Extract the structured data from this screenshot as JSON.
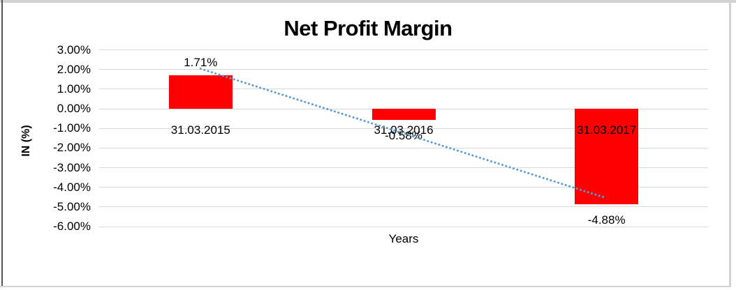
{
  "chart_data": {
    "type": "bar",
    "title": "Net Profit Margin",
    "xlabel": "Years",
    "ylabel": "IN (%)",
    "categories": [
      "31.03.2015",
      "31.03.2016",
      "31.03.2017"
    ],
    "values": [
      1.71,
      -0.58,
      -4.88
    ],
    "data_labels": [
      "1.71%",
      "-0.58%",
      "-4.88%"
    ],
    "ylim": [
      -6,
      3
    ],
    "y_tick_values": [
      3,
      2,
      1,
      0,
      -1,
      -2,
      -3,
      -4,
      -5,
      -6
    ],
    "y_tick_labels": [
      "3.00%",
      "2.00%",
      "1.00%",
      "0.00%",
      "-1.00%",
      "-2.00%",
      "-3.00%",
      "-4.00%",
      "-5.00%",
      "-6.00%"
    ],
    "grid": true,
    "legend": "none",
    "bar_color": "#ff0000",
    "gridline_color": "#d9d9d9",
    "trendline": {
      "type": "linear",
      "style": "dotted",
      "color": "#5b9bd5",
      "start_value": 2.04,
      "end_value": -4.55
    }
  },
  "frame": {
    "border_light": "#d2d2d2",
    "border_dark": "#555555",
    "background": "#ffffff"
  }
}
